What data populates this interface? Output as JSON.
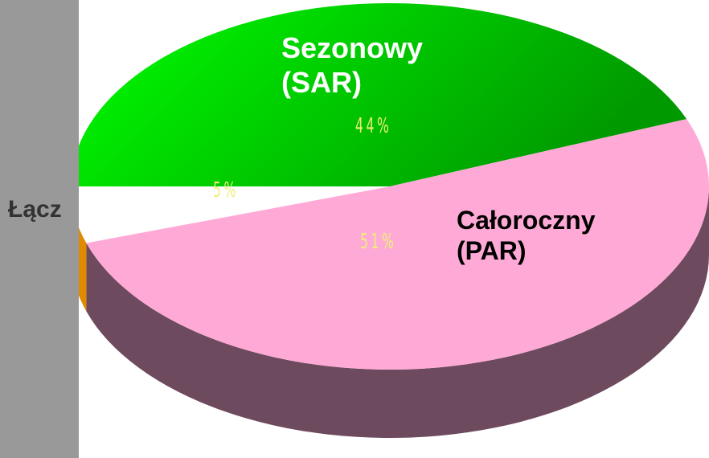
{
  "chart_data": {
    "type": "pie",
    "categories": [
      "Sezonowy (SAR)",
      "Całoroczny (PAR)",
      "Łącz"
    ],
    "values": [
      44,
      51,
      5
    ],
    "value_labels": [
      "44%",
      "51%",
      "5%"
    ],
    "colors": [
      "#22d022",
      "#ffaad6",
      "#ffffff"
    ],
    "side_colors": [
      "#127a12",
      "#6e4a5e",
      "#e08a00"
    ]
  }
}
